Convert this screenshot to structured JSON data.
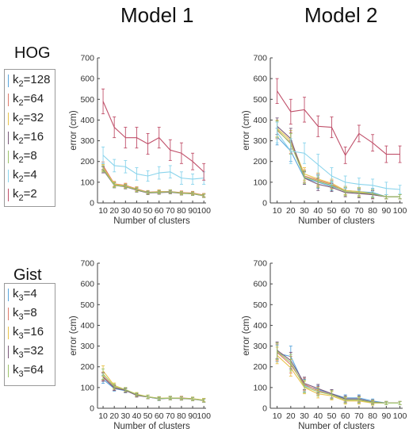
{
  "headers": [
    "Model 1",
    "Model 2"
  ],
  "row_labels": [
    "HOG",
    "Gist"
  ],
  "legends": [
    {
      "items": [
        {
          "base": "k",
          "sub": "2",
          "val": "=128",
          "color": "#5aa6dc"
        },
        {
          "base": "k",
          "sub": "2",
          "val": "=64",
          "color": "#e07a6a"
        },
        {
          "base": "k",
          "sub": "2",
          "val": "=32",
          "color": "#e8c24a"
        },
        {
          "base": "k",
          "sub": "2",
          "val": "=16",
          "color": "#7a5a7a"
        },
        {
          "base": "k",
          "sub": "2",
          "val": "=8",
          "color": "#9cc46a"
        },
        {
          "base": "k",
          "sub": "2",
          "val": "=4",
          "color": "#8ad4ec"
        },
        {
          "base": "k",
          "sub": "2",
          "val": "=2",
          "color": "#c0506a"
        }
      ]
    },
    {
      "items": [
        {
          "base": "k",
          "sub": "3",
          "val": "=4",
          "color": "#5aa6dc"
        },
        {
          "base": "k",
          "sub": "3",
          "val": "=8",
          "color": "#e07a6a"
        },
        {
          "base": "k",
          "sub": "3",
          "val": "=16",
          "color": "#e8c24a"
        },
        {
          "base": "k",
          "sub": "3",
          "val": "=32",
          "color": "#7a5a7a"
        },
        {
          "base": "k",
          "sub": "3",
          "val": "=64",
          "color": "#9cc46a"
        }
      ]
    }
  ],
  "chart_data": [
    {
      "type": "line",
      "title": "",
      "xlabel": "Number of clusters",
      "ylabel": "error (cm)",
      "x": [
        10,
        20,
        30,
        40,
        50,
        60,
        70,
        80,
        90,
        100
      ],
      "xlim": [
        5,
        102
      ],
      "ylim": [
        0,
        700
      ],
      "yticks": [
        0,
        100,
        200,
        300,
        400,
        500,
        600,
        700
      ],
      "grid": false,
      "series": [
        {
          "name": "k2=128",
          "color": "#5aa6dc",
          "values": [
            175,
            88,
            80,
            65,
            50,
            52,
            55,
            48,
            45,
            35
          ],
          "err": [
            15,
            12,
            10,
            10,
            8,
            8,
            8,
            8,
            8,
            8
          ]
        },
        {
          "name": "k2=64",
          "color": "#e07a6a",
          "values": [
            180,
            92,
            85,
            68,
            52,
            55,
            55,
            50,
            48,
            38
          ],
          "err": [
            18,
            12,
            10,
            10,
            8,
            8,
            8,
            8,
            8,
            8
          ]
        },
        {
          "name": "k2=32",
          "color": "#e8c24a",
          "values": [
            170,
            90,
            82,
            66,
            50,
            54,
            54,
            48,
            46,
            36
          ],
          "err": [
            15,
            12,
            10,
            10,
            8,
            8,
            8,
            8,
            8,
            8
          ]
        },
        {
          "name": "k2=16",
          "color": "#7a5a7a",
          "values": [
            160,
            85,
            78,
            62,
            48,
            50,
            52,
            46,
            44,
            34
          ],
          "err": [
            15,
            12,
            10,
            10,
            8,
            8,
            8,
            8,
            8,
            8
          ]
        },
        {
          "name": "k2=8",
          "color": "#9cc46a",
          "values": [
            165,
            86,
            80,
            64,
            50,
            52,
            54,
            47,
            45,
            35
          ],
          "err": [
            15,
            12,
            10,
            10,
            8,
            8,
            8,
            8,
            8,
            8
          ]
        },
        {
          "name": "k2=4",
          "color": "#8ad4ec",
          "values": [
            230,
            180,
            175,
            140,
            130,
            145,
            150,
            120,
            115,
            120
          ],
          "err": [
            40,
            30,
            30,
            30,
            25,
            30,
            30,
            30,
            25,
            30
          ]
        },
        {
          "name": "k2=2",
          "color": "#c0506a",
          "values": [
            490,
            365,
            315,
            315,
            285,
            315,
            255,
            240,
            200,
            150
          ],
          "err": [
            60,
            50,
            50,
            50,
            50,
            50,
            50,
            50,
            40,
            40
          ]
        }
      ]
    },
    {
      "type": "line",
      "title": "",
      "xlabel": "Number of clusters",
      "ylabel": "error (cm)",
      "x": [
        10,
        20,
        30,
        40,
        50,
        60,
        70,
        80,
        90,
        100
      ],
      "xlim": [
        5,
        102
      ],
      "ylim": [
        0,
        700
      ],
      "yticks": [
        0,
        100,
        200,
        300,
        400,
        500,
        600,
        700
      ],
      "grid": false,
      "series": [
        {
          "name": "k2=128",
          "color": "#5aa6dc",
          "values": [
            320,
            250,
            120,
            100,
            80,
            60,
            55,
            50,
            30,
            30
          ],
          "err": [
            40,
            50,
            30,
            30,
            20,
            20,
            20,
            20,
            10,
            10
          ]
        },
        {
          "name": "k2=64",
          "color": "#e07a6a",
          "values": [
            350,
            290,
            130,
            110,
            90,
            55,
            50,
            40,
            30,
            30
          ],
          "err": [
            40,
            50,
            30,
            30,
            20,
            20,
            20,
            20,
            10,
            10
          ]
        },
        {
          "name": "k2=32",
          "color": "#e8c24a",
          "values": [
            360,
            300,
            140,
            115,
            95,
            60,
            55,
            45,
            30,
            30
          ],
          "err": [
            40,
            50,
            30,
            30,
            20,
            20,
            20,
            20,
            10,
            10
          ]
        },
        {
          "name": "k2=16",
          "color": "#7a5a7a",
          "values": [
            370,
            310,
            120,
            90,
            75,
            50,
            45,
            40,
            30,
            30
          ],
          "err": [
            40,
            50,
            30,
            30,
            20,
            20,
            20,
            20,
            10,
            10
          ]
        },
        {
          "name": "k2=8",
          "color": "#9cc46a",
          "values": [
            355,
            285,
            125,
            105,
            85,
            55,
            50,
            45,
            30,
            30
          ],
          "err": [
            40,
            50,
            30,
            30,
            20,
            20,
            20,
            20,
            10,
            10
          ]
        },
        {
          "name": "k2=4",
          "color": "#8ad4ec",
          "values": [
            340,
            250,
            240,
            185,
            130,
            100,
            90,
            85,
            70,
            65
          ],
          "err": [
            50,
            60,
            50,
            50,
            40,
            30,
            30,
            30,
            30,
            20
          ]
        },
        {
          "name": "k2=2",
          "color": "#c0506a",
          "values": [
            540,
            440,
            450,
            370,
            365,
            230,
            335,
            290,
            235,
            235
          ],
          "err": [
            60,
            60,
            60,
            50,
            50,
            40,
            40,
            40,
            40,
            40
          ]
        }
      ]
    },
    {
      "type": "line",
      "title": "",
      "xlabel": "Number of clusters",
      "ylabel": "error (cm)",
      "x": [
        10,
        20,
        30,
        40,
        50,
        60,
        70,
        80,
        90,
        100
      ],
      "xlim": [
        5,
        102
      ],
      "ylim": [
        0,
        700
      ],
      "yticks": [
        0,
        100,
        200,
        300,
        400,
        500,
        600,
        700
      ],
      "grid": false,
      "series": [
        {
          "name": "k3=4",
          "color": "#5aa6dc",
          "values": [
            140,
            95,
            85,
            65,
            55,
            45,
            50,
            48,
            45,
            38
          ],
          "err": [
            20,
            12,
            10,
            8,
            8,
            8,
            8,
            8,
            8,
            8
          ]
        },
        {
          "name": "k3=8",
          "color": "#e07a6a",
          "values": [
            155,
            100,
            88,
            65,
            55,
            48,
            48,
            50,
            46,
            38
          ],
          "err": [
            20,
            12,
            10,
            8,
            8,
            8,
            8,
            8,
            8,
            8
          ]
        },
        {
          "name": "k3=16",
          "color": "#e8c24a",
          "values": [
            180,
            110,
            90,
            68,
            56,
            48,
            50,
            48,
            46,
            40
          ],
          "err": [
            25,
            12,
            10,
            8,
            8,
            8,
            8,
            8,
            8,
            8
          ]
        },
        {
          "name": "k3=32",
          "color": "#7a5a7a",
          "values": [
            150,
            98,
            86,
            62,
            54,
            46,
            48,
            47,
            44,
            37
          ],
          "err": [
            20,
            12,
            10,
            8,
            8,
            8,
            8,
            8,
            8,
            8
          ]
        },
        {
          "name": "k3=64",
          "color": "#9cc46a",
          "values": [
            165,
            105,
            90,
            66,
            55,
            47,
            49,
            48,
            45,
            38
          ],
          "err": [
            25,
            12,
            10,
            8,
            8,
            8,
            8,
            8,
            8,
            8
          ]
        }
      ]
    },
    {
      "type": "line",
      "title": "",
      "xlabel": "Number of clusters",
      "ylabel": "error (cm)",
      "x": [
        10,
        20,
        30,
        40,
        50,
        60,
        70,
        80,
        90,
        100
      ],
      "xlim": [
        5,
        102
      ],
      "ylim": [
        0,
        700
      ],
      "yticks": [
        0,
        100,
        200,
        300,
        400,
        500,
        600,
        700
      ],
      "grid": false,
      "series": [
        {
          "name": "k3=4",
          "color": "#5aa6dc",
          "values": [
            265,
            250,
            110,
            90,
            70,
            50,
            50,
            35,
            25,
            25
          ],
          "err": [
            40,
            50,
            30,
            20,
            20,
            15,
            15,
            10,
            8,
            8
          ]
        },
        {
          "name": "k3=8",
          "color": "#e07a6a",
          "values": [
            270,
            210,
            115,
            85,
            65,
            40,
            40,
            30,
            25,
            25
          ],
          "err": [
            40,
            40,
            30,
            20,
            20,
            15,
            15,
            10,
            8,
            8
          ]
        },
        {
          "name": "k3=16",
          "color": "#e8c24a",
          "values": [
            255,
            195,
            100,
            70,
            60,
            35,
            35,
            25,
            25,
            25
          ],
          "err": [
            40,
            40,
            30,
            20,
            20,
            15,
            15,
            10,
            8,
            8
          ]
        },
        {
          "name": "k3=32",
          "color": "#7a5a7a",
          "values": [
            280,
            230,
            120,
            95,
            70,
            45,
            45,
            30,
            25,
            25
          ],
          "err": [
            40,
            40,
            30,
            20,
            20,
            15,
            15,
            10,
            8,
            8
          ]
        },
        {
          "name": "k3=64",
          "color": "#9cc46a",
          "values": [
            275,
            220,
            105,
            80,
            65,
            40,
            40,
            28,
            25,
            25
          ],
          "err": [
            40,
            40,
            30,
            20,
            20,
            15,
            15,
            10,
            8,
            8
          ]
        }
      ]
    }
  ]
}
